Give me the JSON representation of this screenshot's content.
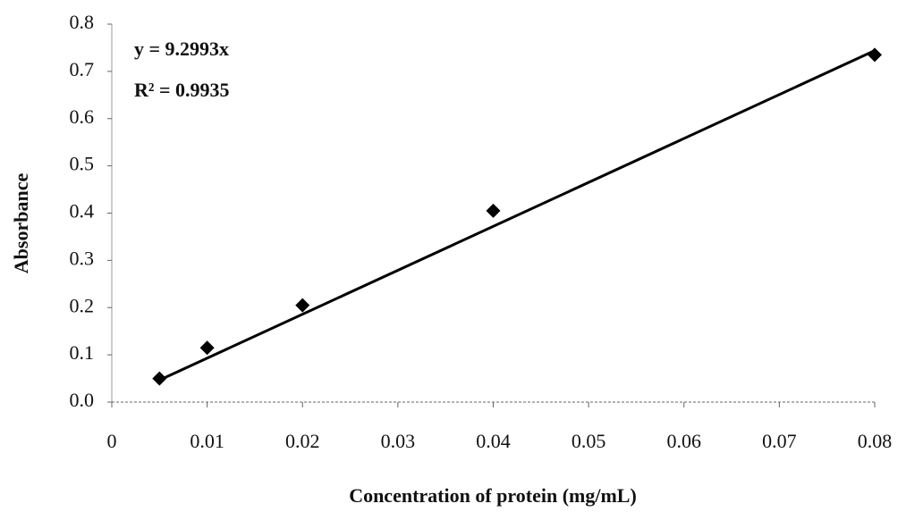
{
  "chart_data": {
    "type": "scatter",
    "x_label": "Concentration of protein (mg/mL)",
    "y_label": "Absorbance",
    "x": [
      0.005,
      0.01,
      0.02,
      0.04,
      0.08
    ],
    "values": [
      0.05,
      0.115,
      0.205,
      0.405,
      0.735
    ],
    "color": "#000000",
    "xlim": [
      0,
      0.08
    ],
    "xticks": [
      0,
      0.01,
      0.02,
      0.03,
      0.04,
      0.05,
      0.06,
      0.07,
      0.08
    ],
    "ylim": [
      0,
      0.8
    ],
    "yticks": [
      {
        "value": 0,
        "label": "0.0"
      },
      0.1,
      0.2,
      0.3,
      0.4,
      0.5,
      0.6,
      0.7,
      0.8
    ],
    "trendline": {
      "equation": "y = 9.2993x",
      "r_squared": "R² = 0.9935",
      "slope": 9.2993,
      "x_range": [
        0.005,
        0.08
      ]
    }
  }
}
